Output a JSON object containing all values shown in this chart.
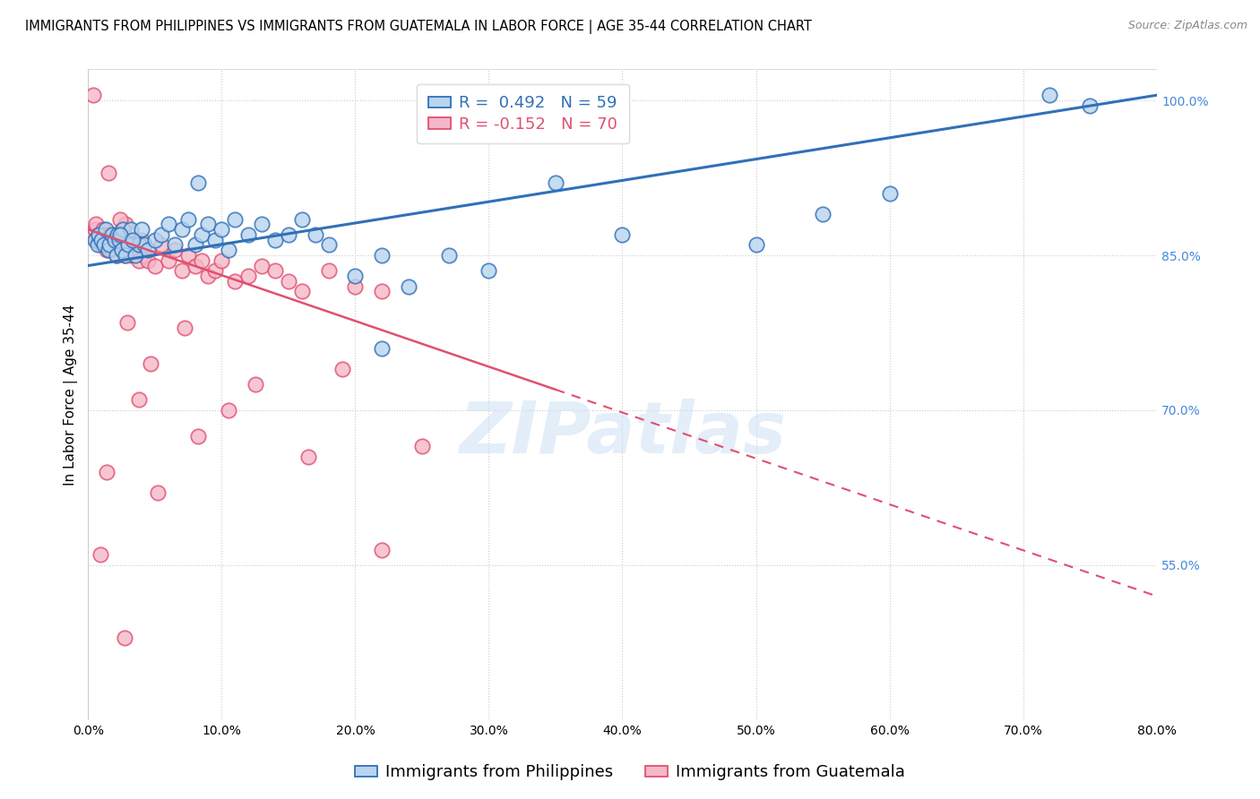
{
  "title": "IMMIGRANTS FROM PHILIPPINES VS IMMIGRANTS FROM GUATEMALA IN LABOR FORCE | AGE 35-44 CORRELATION CHART",
  "source": "Source: ZipAtlas.com",
  "ylabel": "In Labor Force | Age 35-44",
  "xlim": [
    0.0,
    80.0
  ],
  "ylim": [
    40.0,
    103.0
  ],
  "yticks": [
    55.0,
    70.0,
    85.0,
    100.0
  ],
  "xticks": [
    0.0,
    10.0,
    20.0,
    30.0,
    40.0,
    50.0,
    60.0,
    70.0,
    80.0
  ],
  "legend_r_blue": "R =  0.492",
  "legend_n_blue": "N = 59",
  "legend_r_pink": "R = -0.152",
  "legend_n_pink": "N = 70",
  "legend_label_blue": "Immigrants from Philippines",
  "legend_label_pink": "Immigrants from Guatemala",
  "blue_fill": "#b8d4ee",
  "pink_fill": "#f5b8c8",
  "line_blue": "#3070b8",
  "line_pink": "#e05070",
  "watermark": "ZIPatlas",
  "phil_line_x0": 0.0,
  "phil_line_y0": 84.0,
  "phil_line_x1": 80.0,
  "phil_line_y1": 100.5,
  "guat_line_solid_x0": 0.0,
  "guat_line_solid_y0": 87.5,
  "guat_line_solid_x1": 35.0,
  "guat_line_solid_y1": 72.0,
  "guat_line_dash_x0": 35.0,
  "guat_line_dash_y0": 72.0,
  "guat_line_dash_x1": 80.0,
  "guat_line_dash_y1": 52.0,
  "philippines_x": [
    0.5,
    0.7,
    0.8,
    1.0,
    1.2,
    1.3,
    1.5,
    1.6,
    1.8,
    2.0,
    2.1,
    2.2,
    2.3,
    2.5,
    2.6,
    2.8,
    3.0,
    3.2,
    3.5,
    3.8,
    4.0,
    4.2,
    4.5,
    5.0,
    5.5,
    6.0,
    6.5,
    7.0,
    7.5,
    8.0,
    8.5,
    9.0,
    9.5,
    10.0,
    10.5,
    11.0,
    12.0,
    13.0,
    14.0,
    15.0,
    16.0,
    17.0,
    18.0,
    20.0,
    22.0,
    24.0,
    27.0,
    30.0,
    35.0,
    40.0,
    50.0,
    55.0,
    60.0,
    72.0,
    75.0,
    2.4,
    3.3,
    8.2,
    22.0
  ],
  "philippines_y": [
    86.5,
    86.0,
    87.0,
    86.5,
    86.0,
    87.5,
    85.5,
    86.0,
    87.0,
    86.5,
    85.0,
    87.0,
    86.5,
    85.5,
    87.5,
    85.0,
    86.0,
    87.5,
    85.0,
    86.0,
    87.5,
    86.0,
    85.5,
    86.5,
    87.0,
    88.0,
    86.0,
    87.5,
    88.5,
    86.0,
    87.0,
    88.0,
    86.5,
    87.5,
    85.5,
    88.5,
    87.0,
    88.0,
    86.5,
    87.0,
    88.5,
    87.0,
    86.0,
    83.0,
    85.0,
    82.0,
    85.0,
    83.5,
    92.0,
    87.0,
    86.0,
    89.0,
    91.0,
    100.5,
    99.5,
    87.0,
    86.5,
    92.0,
    76.0
  ],
  "guatemala_x": [
    0.3,
    0.5,
    0.6,
    0.7,
    0.8,
    0.9,
    1.0,
    1.1,
    1.2,
    1.3,
    1.4,
    1.5,
    1.6,
    1.7,
    1.8,
    1.9,
    2.0,
    2.1,
    2.2,
    2.3,
    2.5,
    2.6,
    2.7,
    2.8,
    3.0,
    3.2,
    3.3,
    3.5,
    3.8,
    4.0,
    4.2,
    4.5,
    5.0,
    5.5,
    6.0,
    6.5,
    7.0,
    7.5,
    8.0,
    8.5,
    9.0,
    9.5,
    10.0,
    11.0,
    12.0,
    13.0,
    14.0,
    15.0,
    16.0,
    18.0,
    20.0,
    22.0,
    0.4,
    1.5,
    2.4,
    4.7,
    7.2,
    12.5,
    19.0,
    25.0,
    22.0,
    16.5,
    10.5,
    8.2,
    5.2,
    3.8,
    2.9,
    1.4,
    0.9,
    2.7
  ],
  "guatemala_y": [
    87.0,
    87.5,
    88.0,
    86.5,
    87.0,
    86.5,
    86.0,
    87.5,
    87.0,
    86.5,
    85.5,
    87.0,
    86.0,
    85.5,
    86.5,
    87.0,
    86.5,
    85.0,
    87.0,
    86.5,
    85.5,
    87.5,
    85.0,
    88.0,
    86.5,
    85.0,
    86.0,
    85.5,
    84.5,
    86.5,
    85.0,
    84.5,
    84.0,
    86.0,
    84.5,
    85.5,
    83.5,
    85.0,
    84.0,
    84.5,
    83.0,
    83.5,
    84.5,
    82.5,
    83.0,
    84.0,
    83.5,
    82.5,
    81.5,
    83.5,
    82.0,
    81.5,
    100.5,
    93.0,
    88.5,
    74.5,
    78.0,
    72.5,
    74.0,
    66.5,
    56.5,
    65.5,
    70.0,
    67.5,
    62.0,
    71.0,
    78.5,
    64.0,
    56.0,
    48.0
  ],
  "title_fontsize": 10.5,
  "axis_label_fontsize": 11,
  "tick_label_fontsize": 10,
  "legend_fontsize": 13,
  "source_fontsize": 9
}
